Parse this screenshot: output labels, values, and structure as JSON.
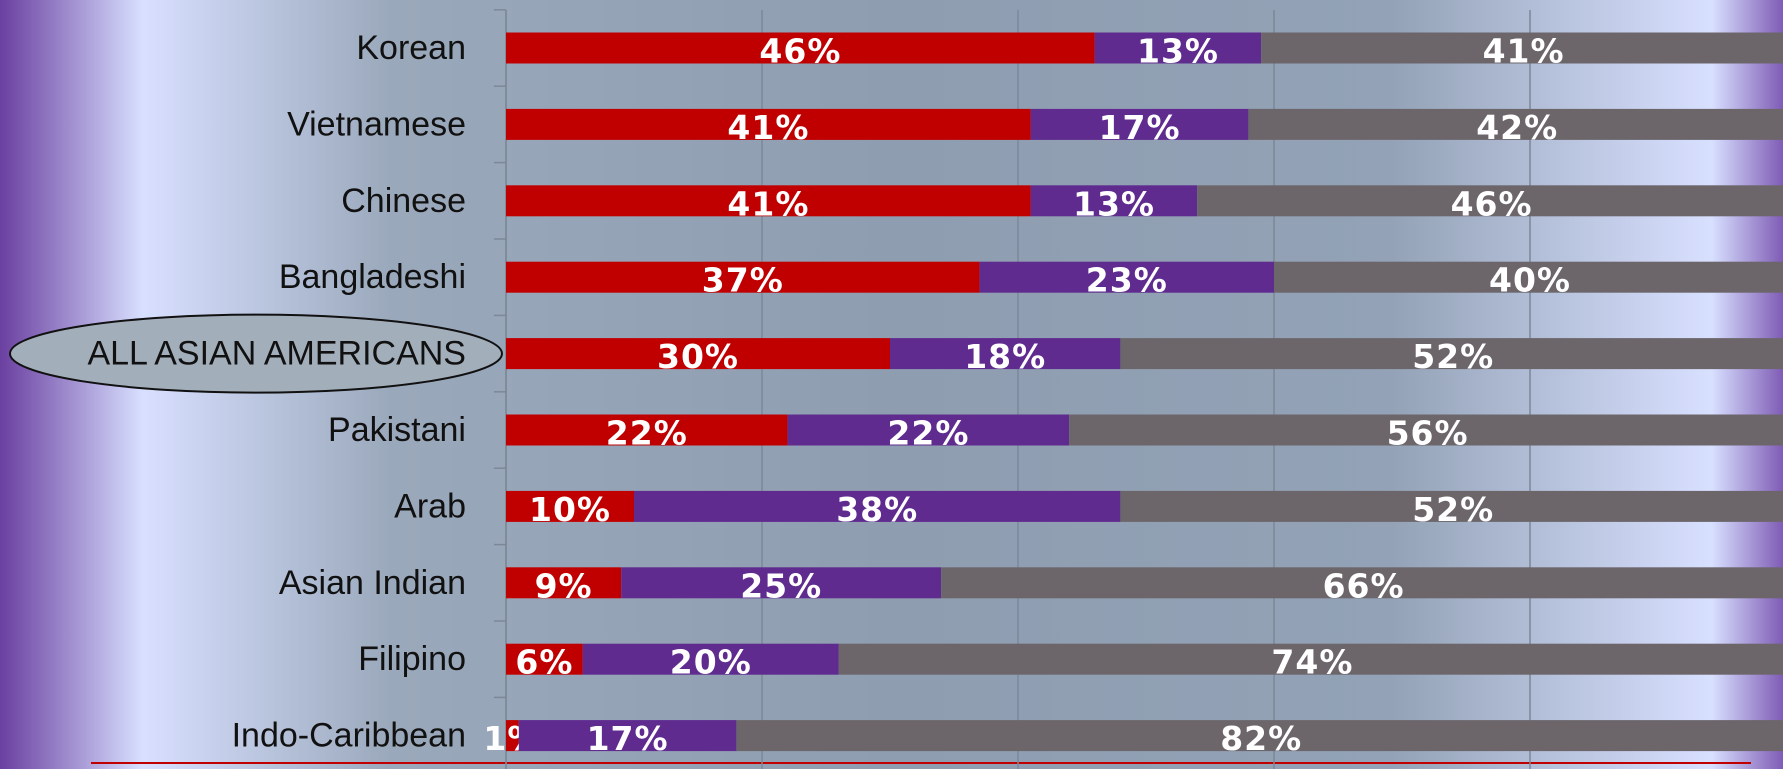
{
  "chart_data": {
    "type": "stacked-bar-horizontal",
    "categories": [
      "Korean",
      "Vietnamese",
      "Chinese",
      "Bangladeshi",
      "ALL ASIAN AMERICANS",
      "Pakistani",
      "Arab",
      "Asian Indian",
      "Filipino",
      "Indo-Caribbean"
    ],
    "series": [
      {
        "color": "#c00000",
        "values": [
          46,
          41,
          41,
          37,
          30,
          22,
          10,
          9,
          6,
          1
        ],
        "value_labels": [
          "46%",
          "41%",
          "41%",
          "37%",
          "30%",
          "22%",
          "10%",
          "9%",
          "6%",
          "1%"
        ]
      },
      {
        "color": "#5f2b8f",
        "values": [
          13,
          17,
          13,
          23,
          18,
          22,
          38,
          25,
          20,
          17
        ],
        "value_labels": [
          "13%",
          "17%",
          "13%",
          "23%",
          "18%",
          "22%",
          "38%",
          "25%",
          "20%",
          "17%"
        ]
      },
      {
        "color": "#6c666b",
        "values": [
          41,
          42,
          46,
          40,
          52,
          56,
          52,
          66,
          74,
          82
        ],
        "value_labels": [
          "41%",
          "42%",
          "46%",
          "40%",
          "52%",
          "56%",
          "52%",
          "66%",
          "74%",
          "82%"
        ]
      }
    ],
    "xlim": [
      0,
      100
    ],
    "xticks": [
      0,
      20,
      40,
      60,
      80,
      100
    ],
    "grid": true,
    "highlight": 4
  }
}
